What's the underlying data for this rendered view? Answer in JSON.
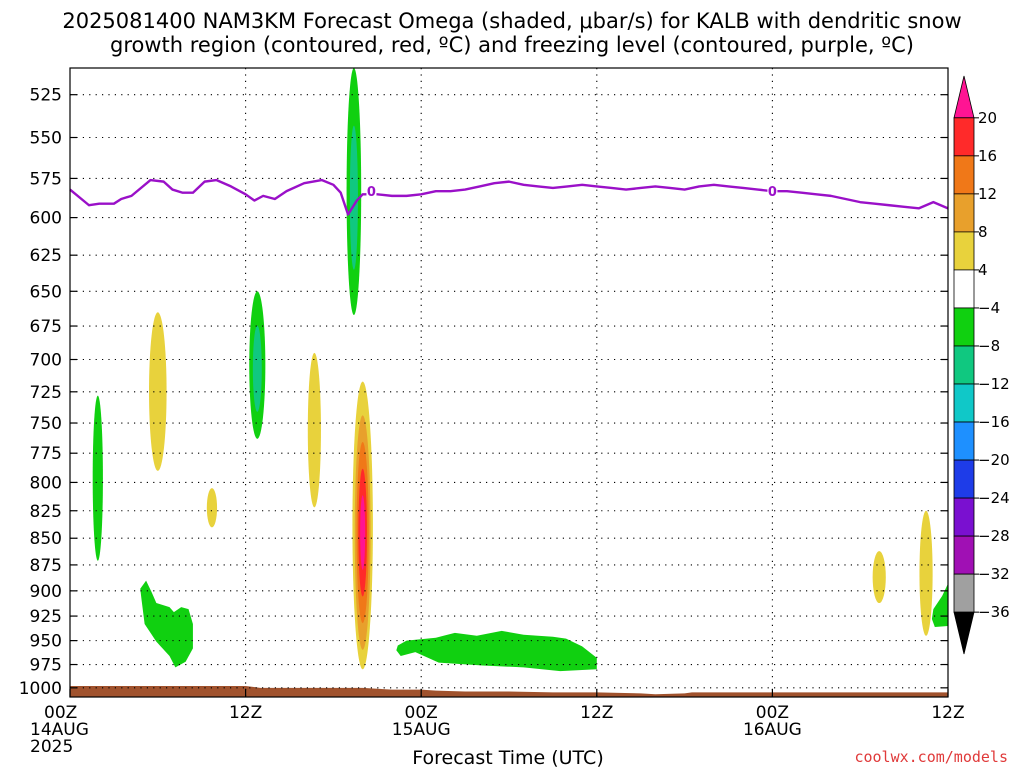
{
  "title_line1": "2025081400 NAM3KM Forecast Omega (shaded, μbar/s) for KALB with dendritic snow",
  "title_line2": "growth region (contoured, red, ºC) and freezing level (contoured, purple, ºC)",
  "credit": "coolwx.com/models",
  "credit_color": "#e03a3a",
  "chart_data": {
    "type": "heatmap",
    "title": "2025081400 NAM3KM Forecast Omega (shaded, μbar/s) for KALB with dendritic snow growth region (contoured, red, ºC) and freezing level (contoured, purple, ºC)",
    "xlabel": "Forecast Time (UTC)",
    "ylabel": "",
    "xlim_hours": [
      0,
      60
    ],
    "ylim_hPa": [
      1010,
      510
    ],
    "y_ticks": [
      525,
      550,
      575,
      600,
      625,
      650,
      675,
      700,
      725,
      750,
      775,
      800,
      825,
      850,
      875,
      900,
      925,
      950,
      975,
      1000
    ],
    "x_ticks": [
      {
        "hour": 0,
        "lines": [
          "00Z",
          "14AUG",
          "2025"
        ]
      },
      {
        "hour": 12,
        "lines": [
          "12Z"
        ]
      },
      {
        "hour": 24,
        "lines": [
          "00Z",
          "15AUG"
        ]
      },
      {
        "hour": 36,
        "lines": [
          "12Z"
        ]
      },
      {
        "hour": 48,
        "lines": [
          "00Z",
          "16AUG"
        ]
      },
      {
        "hour": 60,
        "lines": [
          "12Z"
        ]
      }
    ],
    "grid": true,
    "colorbar": {
      "placement": "right",
      "levels": [
        20,
        16,
        12,
        8,
        4,
        -4,
        -8,
        -12,
        -16,
        -20,
        -24,
        -28,
        -32,
        -36
      ],
      "colors": [
        "#ff1493",
        "#ff2a2a",
        "#f07818",
        "#e8a02c",
        "#e8d23c",
        "#ffffff",
        "#10d010",
        "#10c880",
        "#10c8c8",
        "#1e90ff",
        "#1e3ce8",
        "#7a10d0",
        "#a010b4",
        "#a0a0a0",
        "#000000"
      ]
    },
    "freezing_level": {
      "color": "#9a10c8",
      "label": "0",
      "x_hours": [
        0,
        1.3,
        2,
        3,
        3.5,
        4.2,
        5.5,
        6.4,
        7,
        7.7,
        8.4,
        9.2,
        10,
        11,
        12,
        12.6,
        13.2,
        14,
        14.8,
        16,
        17.2,
        18,
        18.5,
        19,
        19.6,
        20,
        21,
        22,
        23,
        24,
        25,
        26,
        27,
        28,
        29,
        30,
        31,
        32,
        33,
        34,
        35,
        36,
        37,
        38,
        39,
        40,
        41,
        42,
        43,
        44,
        45,
        46,
        47,
        48,
        49,
        50,
        51,
        52,
        53,
        54,
        55,
        56,
        57,
        58,
        59,
        60
      ],
      "pressure_hPa": [
        582,
        592,
        591,
        591,
        588,
        586,
        576,
        577,
        582,
        584,
        584,
        577,
        576,
        580,
        585,
        589,
        586,
        588,
        583,
        578,
        576,
        579,
        584,
        598,
        589,
        585,
        585,
        586,
        586,
        585,
        583,
        583,
        582,
        580,
        578,
        577,
        579,
        580,
        581,
        580,
        579,
        580,
        581,
        582,
        581,
        580,
        581,
        582,
        580,
        579,
        580,
        581,
        582,
        583,
        583,
        584,
        585,
        586,
        588,
        590,
        591,
        592,
        593,
        594,
        590,
        594
      ]
    },
    "shaded_regions": [
      {
        "name": "up-00z-15aug",
        "category": 20,
        "x_center_hours": 20.0,
        "half_width_hours": 0.7,
        "p_top": 717,
        "p_bottom": 980,
        "inner": [
          "#e8d23c",
          "#e8a02c",
          "#f07818",
          "#ff2a2a",
          "#ff1493"
        ]
      },
      {
        "name": "up-09z",
        "category": 4,
        "x_center_hours": 16.7,
        "half_width_hours": 0.45,
        "p_top": 695,
        "p_bottom": 822,
        "inner": [
          "#e8d23c"
        ]
      },
      {
        "name": "up-06z",
        "category": 4,
        "x_center_hours": 6.0,
        "half_width_hours": 0.6,
        "p_top": 665,
        "p_bottom": 790,
        "inner": [
          "#e8d23c"
        ]
      },
      {
        "name": "up-10z-small",
        "category": 4,
        "x_center_hours": 9.7,
        "half_width_hours": 0.35,
        "p_top": 805,
        "p_bottom": 840,
        "inner": [
          "#e8d23c"
        ]
      },
      {
        "name": "up-55z",
        "category": 4,
        "x_center_hours": 55.3,
        "half_width_hours": 0.45,
        "p_top": 862,
        "p_bottom": 912,
        "inner": [
          "#e8d23c"
        ]
      },
      {
        "name": "up-58z",
        "category": 4,
        "x_center_hours": 58.5,
        "half_width_hours": 0.45,
        "p_top": 825,
        "p_bottom": 945,
        "inner": [
          "#e8d23c"
        ]
      },
      {
        "name": "down-19z-top",
        "category": -4,
        "x_center_hours": 19.4,
        "half_width_hours": 0.5,
        "p_top": 510,
        "p_bottom": 667,
        "inner": [
          "#10d010",
          "#10c880"
        ]
      },
      {
        "name": "down-13z",
        "category": -4,
        "x_center_hours": 12.8,
        "half_width_hours": 0.55,
        "p_top": 650,
        "p_bottom": 763,
        "inner": [
          "#10d010",
          "#10c880"
        ]
      },
      {
        "name": "down-02z",
        "category": -4,
        "x_center_hours": 1.9,
        "half_width_hours": 0.35,
        "p_top": 728,
        "p_bottom": 871,
        "inner": [
          "#10d010"
        ]
      }
    ],
    "low_level_descent": [
      {
        "name": "down-05z-blob",
        "x_hours": [
          4.8,
          5.2,
          5.6,
          5.9,
          6.8,
          7.1,
          7.6,
          8.1,
          8.4,
          8.4,
          7.9,
          7.2,
          6.8,
          5.9,
          5.1,
          4.9
        ],
        "pressure_hPa": [
          898,
          890,
          902,
          912,
          916,
          921,
          916,
          918,
          933,
          958,
          972,
          978,
          966,
          951,
          933,
          910
        ]
      },
      {
        "name": "down-26z-blob",
        "x_hours": [
          22.4,
          23.0,
          25.0,
          26.3,
          27.8,
          29.5,
          31.0,
          33.0,
          33.9,
          35.0,
          36.0,
          36.0,
          33.5,
          31.0,
          28.2,
          25.2,
          23.6,
          22.6,
          22.3
        ],
        "pressure_hPa": [
          955,
          950,
          947,
          942,
          945,
          940,
          944,
          946,
          948,
          956,
          968,
          980,
          982,
          978,
          976,
          973,
          962,
          966,
          960
        ]
      },
      {
        "name": "down-60z-edge",
        "x_hours": [
          59.0,
          59.6,
          60.0,
          60.0,
          59.1,
          58.9
        ],
        "pressure_hPa": [
          918,
          905,
          893,
          935,
          936,
          928
        ]
      }
    ],
    "terrain": {
      "color": "#a0522d",
      "x_hours": [
        0,
        6,
        12,
        13,
        16,
        18,
        19,
        20,
        21,
        22,
        23,
        24,
        25,
        27,
        30,
        33,
        36,
        39,
        40,
        42,
        42.5,
        45,
        48,
        52,
        56,
        60
      ],
      "surface_hPa": [
        998,
        998,
        998,
        1000,
        1000,
        1000,
        1000,
        1000,
        1001,
        1002,
        1002,
        1002,
        1003,
        1004,
        1004,
        1005,
        1005,
        1006,
        1007,
        1006,
        1005,
        1005,
        1005,
        1005,
        1005,
        1005
      ]
    }
  }
}
